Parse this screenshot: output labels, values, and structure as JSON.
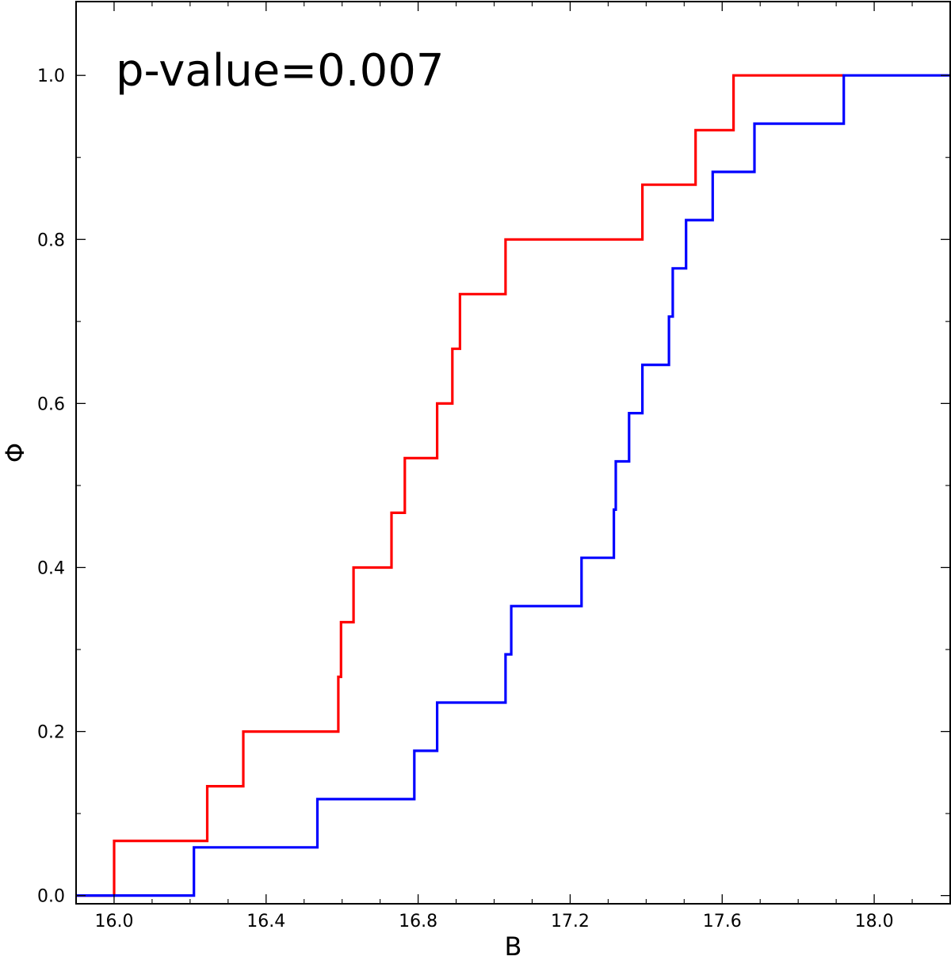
{
  "chart_data": {
    "type": "line",
    "step": true,
    "title": "",
    "xlabel": "B",
    "ylabel": "Φ",
    "xlim": [
      15.9,
      18.2
    ],
    "ylim": [
      -0.01,
      1.09
    ],
    "x_ticks": [
      16.0,
      16.4,
      16.8,
      17.2,
      17.6,
      18.0
    ],
    "x_tick_labels": [
      "16.0",
      "16.4",
      "16.8",
      "17.2",
      "17.6",
      "18.0"
    ],
    "y_ticks": [
      0.0,
      0.2,
      0.4,
      0.6,
      0.8,
      1.0
    ],
    "y_tick_labels": [
      "0.0",
      "0.2",
      "0.4",
      "0.6",
      "0.8",
      "1.0"
    ],
    "grid": false,
    "annotation": "p-value=0.007",
    "series": [
      {
        "name": "red",
        "color": "#ff0000",
        "x": [
          15.9,
          16.0,
          16.245,
          16.34,
          16.59,
          16.597,
          16.63,
          16.73,
          16.765,
          16.85,
          16.89,
          16.91,
          17.03,
          17.39,
          17.53,
          17.63,
          17.92
        ],
        "y": [
          0.0,
          0.0667,
          0.1333,
          0.2,
          0.2667,
          0.3333,
          0.4,
          0.4667,
          0.5333,
          0.6,
          0.6667,
          0.7333,
          0.8,
          0.8667,
          0.9333,
          1.0,
          1.0
        ]
      },
      {
        "name": "blue",
        "color": "#0000ff",
        "x": [
          15.9,
          16.21,
          16.535,
          16.79,
          16.85,
          17.03,
          17.045,
          17.23,
          17.315,
          17.32,
          17.355,
          17.39,
          17.46,
          17.47,
          17.505,
          17.575,
          17.685,
          17.92,
          18.2
        ],
        "y": [
          0.0,
          0.0588,
          0.1176,
          0.1765,
          0.2353,
          0.2941,
          0.3529,
          0.4118,
          0.4706,
          0.5294,
          0.5882,
          0.6471,
          0.7059,
          0.7647,
          0.8235,
          0.8824,
          0.9412,
          1.0,
          1.0
        ]
      }
    ]
  }
}
